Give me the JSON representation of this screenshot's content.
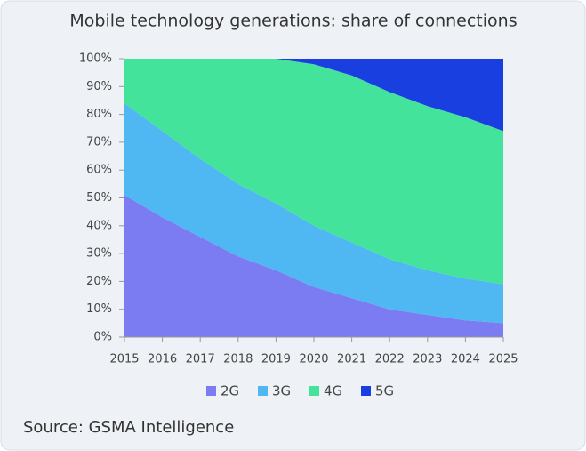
{
  "chart_data": {
    "type": "stacked_area",
    "title": "Mobile technology generations: share of connections",
    "categories": [
      "2015",
      "2016",
      "2017",
      "2018",
      "2019",
      "2020",
      "2021",
      "2022",
      "2023",
      "2024",
      "2025"
    ],
    "series": [
      {
        "name": "2G",
        "color": "#7b7cf2",
        "values": [
          51,
          43,
          36,
          29,
          24,
          18,
          14,
          10,
          8,
          6,
          5
        ]
      },
      {
        "name": "3G",
        "color": "#4fb8f2",
        "values": [
          33,
          31,
          28,
          26,
          24,
          22,
          20,
          18,
          16,
          15,
          14
        ]
      },
      {
        "name": "4G",
        "color": "#44e39c",
        "values": [
          16,
          26,
          36,
          45,
          52,
          58,
          60,
          60,
          59,
          58,
          55
        ]
      },
      {
        "name": "5G",
        "color": "#1a3fe0",
        "values": [
          0,
          0,
          0,
          0,
          0,
          2,
          6,
          12,
          17,
          21,
          26
        ]
      }
    ],
    "ylim": [
      0,
      100
    ],
    "yticks": [
      {
        "value": 0,
        "label": "0%"
      },
      {
        "value": 10,
        "label": "10%"
      },
      {
        "value": 20,
        "label": "20%"
      },
      {
        "value": 30,
        "label": "30%"
      },
      {
        "value": 40,
        "label": "40%"
      },
      {
        "value": 50,
        "label": "50%"
      },
      {
        "value": 60,
        "label": "60%"
      },
      {
        "value": 70,
        "label": "70%"
      },
      {
        "value": 80,
        "label": "80%"
      },
      {
        "value": 90,
        "label": "90%"
      },
      {
        "value": 100,
        "label": "100%"
      }
    ],
    "legend": "bottom",
    "source": "Source: GSMA Intelligence"
  }
}
